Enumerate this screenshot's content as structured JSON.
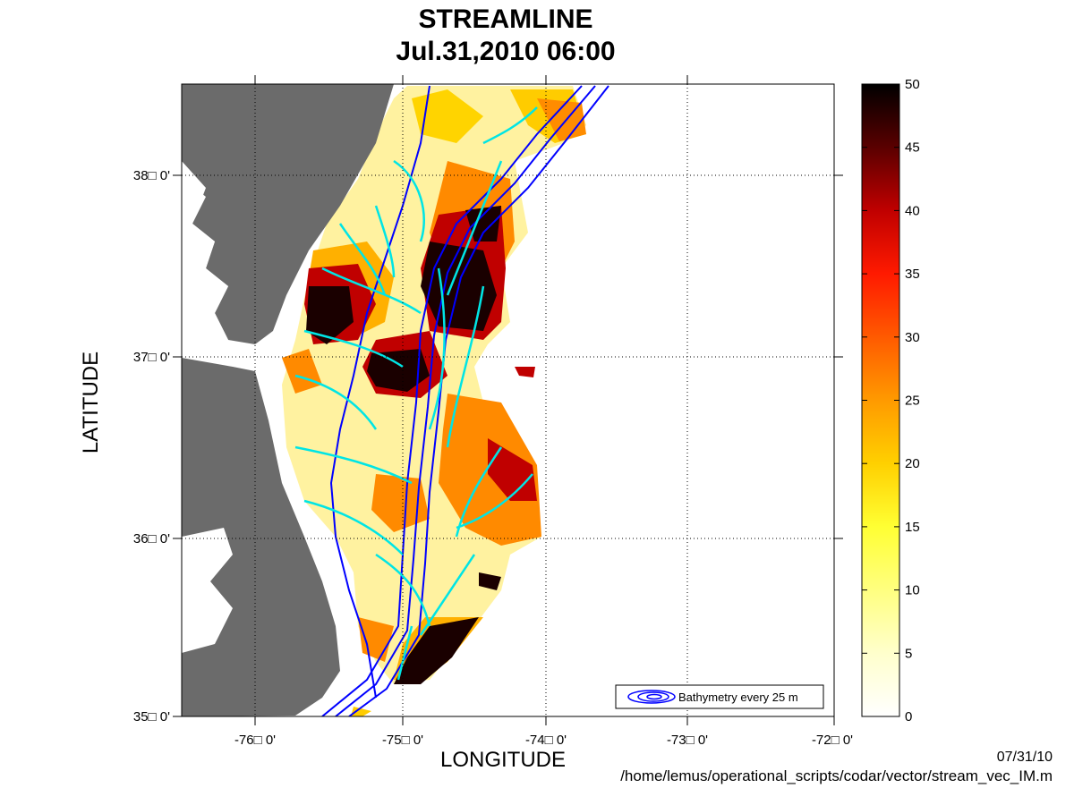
{
  "title": {
    "line1": "STREAMLINE",
    "line2": "Jul.31,2010 06:00"
  },
  "axes": {
    "xlabel": "LONGITUDE",
    "ylabel": "LATITUDE",
    "x_ticks": [
      "-76□ 0'",
      "-75□ 0'",
      "-74□ 0'",
      "-73□ 0'",
      "-72□ 0'"
    ],
    "y_ticks": [
      "35□ 0'",
      "36□ 0'",
      "37□ 0'",
      "38□ 0'"
    ]
  },
  "legend": {
    "label": "Bathymetry every 25 m"
  },
  "colorbar": {
    "ticks": [
      "0",
      "5",
      "10",
      "15",
      "20",
      "25",
      "30",
      "35",
      "40",
      "45",
      "50"
    ]
  },
  "footer": {
    "date": "07/31/10",
    "path": "/home/lemus/operational_scripts/codar/vector/stream_vec_IM.m"
  },
  "colors": {
    "land": "#6b6b6b",
    "bathymetry": "#0000ff",
    "streamline": "#00e5e5",
    "speed_low": "#ffffcc",
    "speed_mid": "#ffd700",
    "speed_high": "#ff4500",
    "speed_max": "#1a0000"
  },
  "chart_data": {
    "type": "heatmap",
    "title": "STREAMLINE Jul.31,2010 06:00",
    "xlabel": "LONGITUDE",
    "ylabel": "LATITUDE",
    "xlim": [
      -76.5,
      -72
    ],
    "ylim": [
      35,
      38.5
    ],
    "colorbar_range": [
      0,
      50
    ],
    "colorbar_ticks": [
      0,
      5,
      10,
      15,
      20,
      25,
      30,
      35,
      40,
      45,
      50
    ],
    "grid": true
  }
}
